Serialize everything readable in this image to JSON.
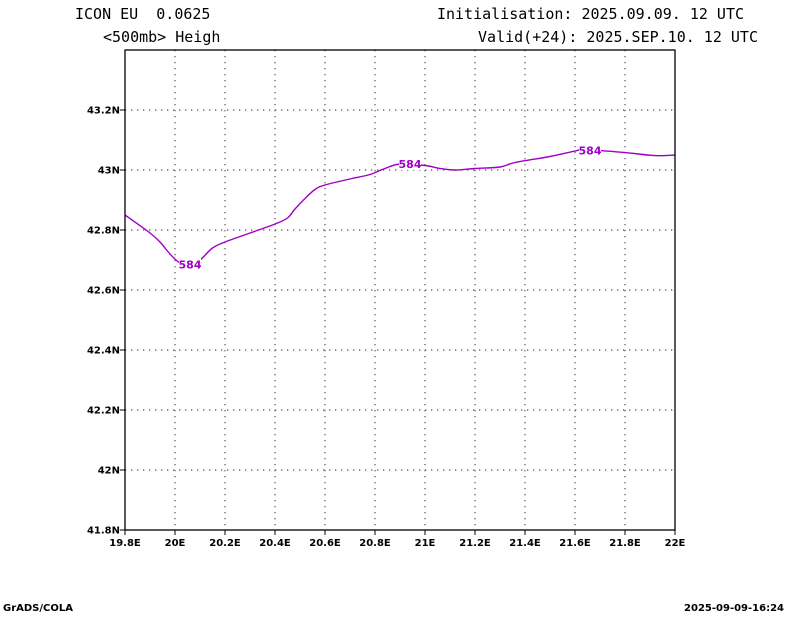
{
  "header": {
    "left_line1": "ICON EU  0.0625",
    "left_line2": "<500mb> Heigh",
    "right_line1": "Initialisation: 2025.09.09. 12 UTC",
    "right_line2": "Valid(+24): 2025.SEP.10. 12 UTC"
  },
  "footer": {
    "left": "GrADS/COLA",
    "right": "2025-09-09-16:24"
  },
  "chart_data": {
    "type": "line",
    "title": "",
    "xlabel": "",
    "ylabel": "",
    "xlim": [
      19.8,
      22.0
    ],
    "ylim": [
      41.8,
      43.4
    ],
    "grid": true,
    "line_color": "#a000c8",
    "x_ticks": [
      {
        "value": 19.8,
        "label": "19.8E"
      },
      {
        "value": 20.0,
        "label": "20E"
      },
      {
        "value": 20.2,
        "label": "20.2E"
      },
      {
        "value": 20.4,
        "label": "20.4E"
      },
      {
        "value": 20.6,
        "label": "20.6E"
      },
      {
        "value": 20.8,
        "label": "20.8E"
      },
      {
        "value": 21.0,
        "label": "21E"
      },
      {
        "value": 21.2,
        "label": "21.2E"
      },
      {
        "value": 21.4,
        "label": "21.4E"
      },
      {
        "value": 21.6,
        "label": "21.6E"
      },
      {
        "value": 21.8,
        "label": "21.8E"
      },
      {
        "value": 22.0,
        "label": "22E"
      }
    ],
    "y_ticks": [
      {
        "value": 41.8,
        "label": "41.8N"
      },
      {
        "value": 42.0,
        "label": "42N"
      },
      {
        "value": 42.2,
        "label": "42.2N"
      },
      {
        "value": 42.4,
        "label": "42.4N"
      },
      {
        "value": 42.6,
        "label": "42.6N"
      },
      {
        "value": 42.8,
        "label": "42.8N"
      },
      {
        "value": 43.0,
        "label": "43N"
      },
      {
        "value": 43.2,
        "label": "43.2N"
      }
    ],
    "series": [
      {
        "contour_value": "584",
        "x": [
          19.8,
          19.9,
          19.94,
          19.98,
          20.02,
          20.06,
          20.1,
          20.15,
          20.2,
          20.3,
          20.4,
          20.45,
          20.48,
          20.52,
          20.56,
          20.6,
          20.7,
          20.78,
          20.84,
          20.9,
          21.0,
          21.06,
          21.12,
          21.2,
          21.3,
          21.36,
          21.5,
          21.6,
          21.64,
          21.8,
          21.92,
          22.0
        ],
        "y": [
          42.85,
          42.79,
          42.76,
          42.72,
          42.69,
          42.685,
          42.7,
          42.74,
          42.76,
          42.79,
          42.82,
          42.84,
          42.87,
          42.905,
          42.935,
          42.95,
          42.97,
          42.985,
          43.005,
          43.02,
          43.015,
          43.005,
          43.0,
          43.005,
          43.01,
          43.025,
          43.045,
          43.063,
          43.068,
          43.058,
          43.048,
          43.05
        ]
      }
    ],
    "contour_labels": [
      {
        "text": "584",
        "x": 20.06,
        "y": 42.685
      },
      {
        "text": "584",
        "x": 20.94,
        "y": 43.02
      },
      {
        "text": "584",
        "x": 21.66,
        "y": 43.065
      }
    ]
  }
}
